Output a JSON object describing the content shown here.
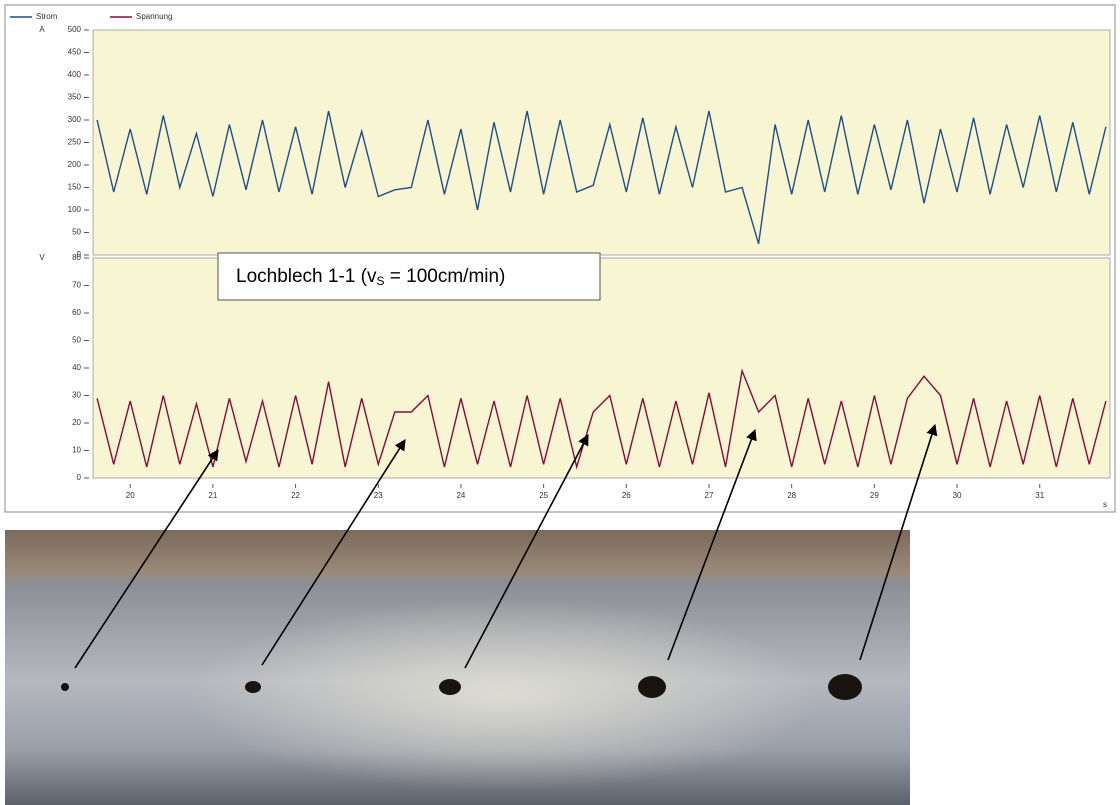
{
  "chart_data": [
    {
      "type": "line",
      "axis_label": "A",
      "x": [
        19.6,
        19.8,
        20.0,
        20.2,
        20.4,
        20.6,
        20.8,
        21.0,
        21.2,
        21.4,
        21.6,
        21.8,
        22.0,
        22.2,
        22.4,
        22.6,
        22.8,
        23.0,
        23.2,
        23.4,
        23.6,
        23.8,
        24.0,
        24.2,
        24.4,
        24.6,
        24.8,
        25.0,
        25.2,
        25.4,
        25.6,
        25.8,
        26.0,
        26.2,
        26.4,
        26.6,
        26.8,
        27.0,
        27.2,
        27.4,
        27.6,
        27.8,
        28.0,
        28.2,
        28.4,
        28.6,
        28.8,
        29.0,
        29.2,
        29.4,
        29.6,
        29.8,
        30.0,
        30.2,
        30.4,
        30.6,
        30.8,
        31.0,
        31.2,
        31.4,
        31.6,
        31.8
      ],
      "series": [
        {
          "name": "Strom",
          "color": "#1f4e8c",
          "values": [
            300,
            140,
            280,
            135,
            310,
            150,
            270,
            130,
            290,
            145,
            300,
            140,
            285,
            135,
            320,
            150,
            275,
            130,
            145,
            150,
            300,
            135,
            280,
            100,
            295,
            140,
            320,
            135,
            300,
            140,
            155,
            290,
            140,
            305,
            135,
            285,
            150,
            320,
            140,
            150,
            25,
            290,
            135,
            300,
            140,
            310,
            135,
            290,
            145,
            300,
            115,
            280,
            140,
            305,
            135,
            290,
            150,
            310,
            140,
            295,
            135,
            285
          ]
        }
      ],
      "xlim": [
        19.55,
        31.85
      ],
      "ylim": [
        0,
        500
      ],
      "yticks": [
        0,
        50,
        100,
        150,
        200,
        250,
        300,
        350,
        400,
        450,
        500
      ]
    },
    {
      "type": "line",
      "axis_label": "V",
      "x_label": "s",
      "x": [
        19.6,
        19.8,
        20.0,
        20.2,
        20.4,
        20.6,
        20.8,
        21.0,
        21.2,
        21.4,
        21.6,
        21.8,
        22.0,
        22.2,
        22.4,
        22.6,
        22.8,
        23.0,
        23.2,
        23.4,
        23.6,
        23.8,
        24.0,
        24.2,
        24.4,
        24.6,
        24.8,
        25.0,
        25.2,
        25.4,
        25.6,
        25.8,
        26.0,
        26.2,
        26.4,
        26.6,
        26.8,
        27.0,
        27.2,
        27.4,
        27.6,
        27.8,
        28.0,
        28.2,
        28.4,
        28.6,
        28.8,
        29.0,
        29.2,
        29.4,
        29.6,
        29.8,
        30.0,
        30.2,
        30.4,
        30.6,
        30.8,
        31.0,
        31.2,
        31.4,
        31.6,
        31.8
      ],
      "series": [
        {
          "name": "Spannung",
          "color": "#8b0a3a",
          "values": [
            29,
            5,
            28,
            4,
            30,
            5,
            27,
            4,
            29,
            6,
            28,
            4,
            30,
            5,
            35,
            4,
            29,
            5,
            24,
            24,
            30,
            4,
            29,
            5,
            28,
            4,
            30,
            5,
            29,
            4,
            24,
            30,
            5,
            29,
            4,
            28,
            5,
            31,
            4,
            39,
            24,
            30,
            4,
            29,
            5,
            28,
            4,
            30,
            5,
            29,
            37,
            30,
            5,
            29,
            4,
            28,
            5,
            30,
            4,
            29,
            5,
            28
          ]
        }
      ],
      "xlim": [
        19.55,
        31.85
      ],
      "ylim": [
        0,
        80
      ],
      "yticks": [
        0,
        10,
        20,
        30,
        40,
        50,
        60,
        70,
        80
      ],
      "xticks": [
        20,
        21,
        22,
        23,
        24,
        25,
        26,
        27,
        28,
        29,
        30,
        31
      ],
      "annotation": {
        "prefix": "Lochblech 1-1 (v",
        "subscript": "S",
        "suffix": " =  100cm/min)"
      }
    }
  ]
}
